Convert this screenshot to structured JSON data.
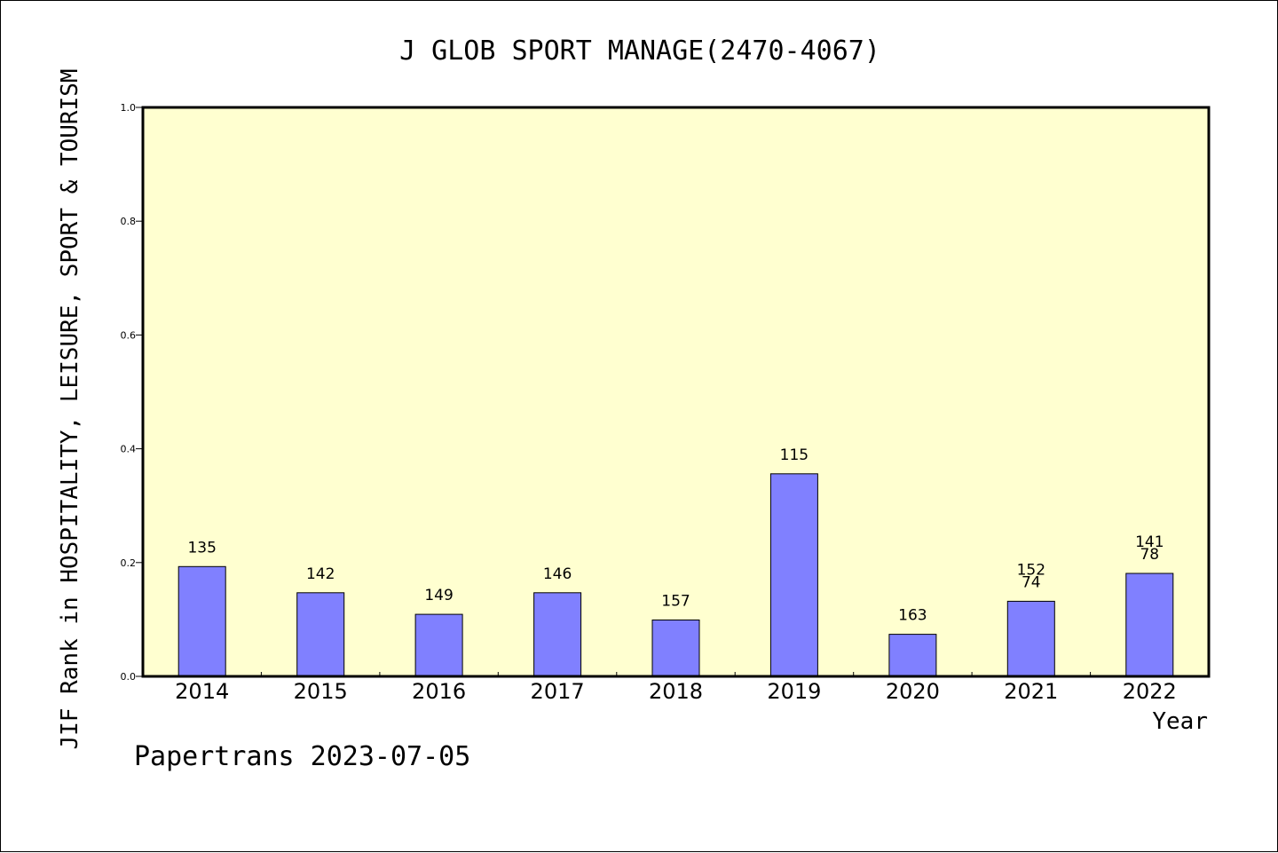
{
  "chart_data": {
    "type": "bar",
    "title": "J GLOB SPORT MANAGE(2470-4067)",
    "xlabel": "Year",
    "ylabel": "JIF Rank in HOSPITALITY, LEISURE, SPORT & TOURISM",
    "ylim": [
      0.0,
      1.0
    ],
    "yticks": [
      "0.0",
      "0.2",
      "0.4",
      "0.6",
      "0.8",
      "1.0"
    ],
    "categories": [
      "2014",
      "2015",
      "2016",
      "2017",
      "2018",
      "2019",
      "2020",
      "2021",
      "2022"
    ],
    "values": [
      0.193,
      0.147,
      0.109,
      0.147,
      0.099,
      0.356,
      0.074,
      0.132,
      0.181
    ],
    "bar_labels": [
      [
        "135"
      ],
      [
        "142"
      ],
      [
        "149"
      ],
      [
        "146"
      ],
      [
        "157"
      ],
      [
        "115"
      ],
      [
        "163"
      ],
      [
        "152",
        "74"
      ],
      [
        "141",
        "78"
      ]
    ],
    "grid": false,
    "colors": {
      "bar": "#8080ff",
      "plot_bg": "#ffffd0",
      "axis": "#000000"
    }
  },
  "footer": {
    "text": "Papertrans 2023-07-05"
  }
}
